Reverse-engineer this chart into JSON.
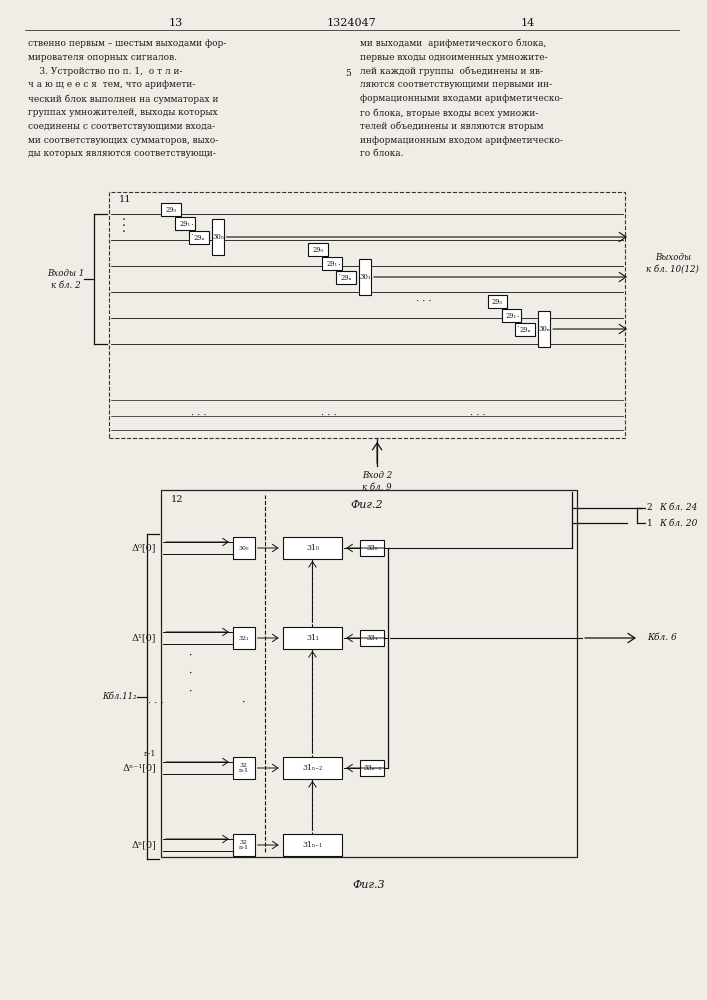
{
  "page_width": 7.07,
  "page_height": 10.0,
  "bg_color": "#f0ede6",
  "text_color": "#1a1a1a",
  "header": {
    "left_num": "13",
    "center_num": "1324047",
    "right_num": "14"
  },
  "left_text_col": [
    "ственно первым – шестым выходами фор-",
    "мирователя опорных сигналов.",
    "    3. Устройство по п. 1,  о т л и-",
    "ч а ю щ е е с я  тем, что арифмети-",
    "ческий блок выполнен на сумматорах и",
    "группах умножителей, выходы которых",
    "соединены с соответствующими входa-",
    "ми соответствующих сумматоров, выхо-",
    "ды которых являются соответствующи-"
  ],
  "right_text_col": [
    "ми выходами  арифметического блока,",
    "первые входы одноименных умножите-",
    "лей каждой группы  объединены и яв-",
    "ляются соответствующими первыми ин-",
    "формационными входами арифметическо-",
    "го блока, вторые входы всех умножи-",
    "телей объединены и являются вторым",
    "информационным входом арифметическо-",
    "го блока."
  ],
  "fig2_label": "Фиг.2",
  "fig3_label": "Фиг.3"
}
